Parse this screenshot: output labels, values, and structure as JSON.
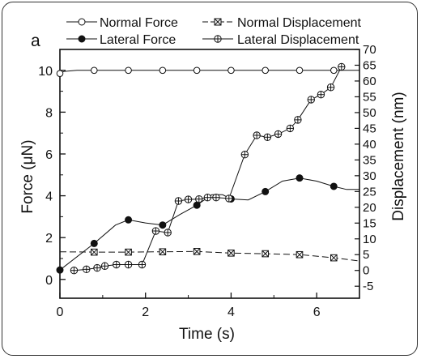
{
  "chart_data": {
    "type": "line",
    "panel_label": "a",
    "xlabel": "Time (s)",
    "ylabel_left": "Force (μN)",
    "ylabel_right": "Displacement (nm)",
    "xlim": [
      0,
      7
    ],
    "ylim_left": [
      -0.9,
      11
    ],
    "ylim_right": [
      -8.8,
      70
    ],
    "x_ticks": [
      0,
      2,
      4,
      6
    ],
    "y_left_ticks": [
      0,
      2,
      4,
      6,
      8,
      10
    ],
    "y_right_ticks": [
      -5,
      0,
      5,
      10,
      15,
      20,
      25,
      30,
      35,
      40,
      45,
      50,
      55,
      60,
      65,
      70
    ],
    "legend_position": "top",
    "grid": false,
    "series": [
      {
        "name": "Normal Force",
        "axis": "left",
        "marker": "open-circle",
        "x": [
          0,
          0.8,
          1.6,
          2.4,
          3.2,
          4.0,
          4.8,
          5.6,
          6.4
        ],
        "y": [
          9.85,
          10.0,
          10.0,
          10.0,
          10.0,
          10.0,
          10.0,
          10.0,
          10.0
        ],
        "line_path": [
          [
            0,
            9.85
          ],
          [
            0.1,
            9.95
          ],
          [
            0.4,
            10.0
          ],
          [
            7,
            10.0
          ]
        ]
      },
      {
        "name": "Lateral Force",
        "axis": "left",
        "marker": "filled-circle",
        "x": [
          0,
          0.8,
          1.6,
          2.4,
          3.2,
          4.0,
          4.8,
          5.6,
          6.4
        ],
        "y": [
          0.45,
          1.72,
          2.85,
          2.6,
          3.55,
          3.85,
          4.2,
          4.85,
          4.45
        ],
        "line_path": [
          [
            0,
            0.45
          ],
          [
            0.8,
            1.72
          ],
          [
            1.3,
            2.6
          ],
          [
            1.6,
            2.85
          ],
          [
            2.0,
            2.7
          ],
          [
            2.4,
            2.6
          ],
          [
            2.8,
            3.1
          ],
          [
            3.2,
            3.55
          ],
          [
            3.55,
            4.05
          ],
          [
            3.8,
            4.05
          ],
          [
            4.0,
            3.85
          ],
          [
            4.4,
            3.8
          ],
          [
            4.8,
            4.2
          ],
          [
            5.2,
            4.7
          ],
          [
            5.6,
            4.85
          ],
          [
            6.0,
            4.7
          ],
          [
            6.4,
            4.45
          ],
          [
            6.7,
            4.3
          ],
          [
            7.0,
            4.3
          ]
        ]
      },
      {
        "name": "Normal Displacement",
        "axis": "right",
        "marker": "boxed-x",
        "x": [
          0.8,
          1.6,
          2.4,
          3.2,
          4.0,
          4.8,
          5.6,
          6.4
        ],
        "y": [
          5.8,
          5.8,
          5.9,
          6.0,
          5.5,
          5.3,
          5.0,
          4.0
        ],
        "line_path": [
          [
            0,
            5.9
          ],
          [
            0.8,
            5.8
          ],
          [
            1.6,
            5.8
          ],
          [
            2.4,
            5.9
          ],
          [
            3.2,
            6.0
          ],
          [
            4.0,
            5.5
          ],
          [
            4.8,
            5.3
          ],
          [
            5.6,
            5.0
          ],
          [
            6.4,
            4.0
          ],
          [
            7.0,
            3.0
          ]
        ]
      },
      {
        "name": "Lateral Displacement",
        "axis": "right",
        "marker": "crossed-circle",
        "x": [
          0.33,
          0.62,
          0.87,
          1.05,
          1.32,
          1.6,
          1.92,
          2.24,
          2.52,
          2.77,
          3.0,
          3.25,
          3.45,
          3.65,
          3.95,
          4.32,
          4.6,
          4.85,
          5.1,
          5.38,
          5.56,
          5.87,
          6.1,
          6.33,
          6.58
        ],
        "y": [
          0.0,
          0.35,
          0.8,
          1.4,
          1.85,
          1.85,
          1.85,
          12.5,
          12.0,
          22.0,
          22.5,
          22.6,
          23.1,
          23.1,
          22.8,
          36.7,
          42.8,
          42.2,
          43.2,
          45.0,
          47.7,
          54.1,
          55.7,
          58.0,
          64.5
        ],
        "line_path": [
          [
            0.33,
            0.0
          ],
          [
            0.62,
            0.35
          ],
          [
            0.87,
            0.8
          ],
          [
            1.05,
            1.4
          ],
          [
            1.32,
            1.85
          ],
          [
            1.6,
            1.85
          ],
          [
            1.92,
            1.85
          ],
          [
            2.24,
            12.5
          ],
          [
            2.52,
            12.0
          ],
          [
            2.77,
            22.0
          ],
          [
            3.0,
            22.5
          ],
          [
            3.25,
            22.6
          ],
          [
            3.45,
            23.1
          ],
          [
            3.65,
            23.1
          ],
          [
            3.95,
            22.8
          ],
          [
            4.32,
            36.7
          ],
          [
            4.6,
            42.8
          ],
          [
            4.85,
            42.2
          ],
          [
            5.1,
            43.2
          ],
          [
            5.38,
            45.0
          ],
          [
            5.56,
            47.7
          ],
          [
            5.87,
            54.1
          ],
          [
            6.1,
            55.7
          ],
          [
            6.33,
            58.0
          ],
          [
            6.58,
            64.5
          ]
        ]
      }
    ]
  }
}
